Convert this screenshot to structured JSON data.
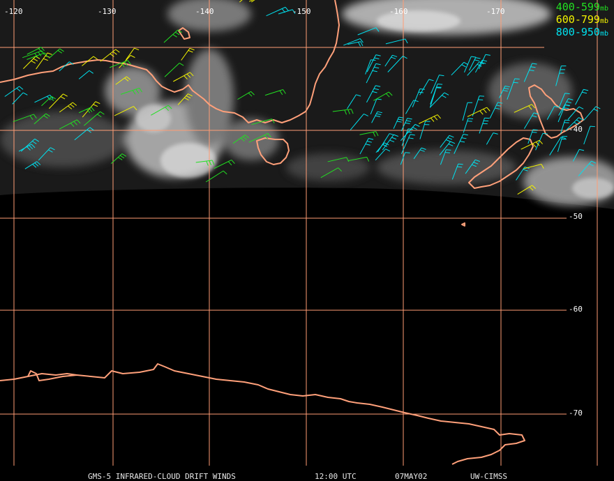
{
  "colors": {
    "grid": "#ff9d75",
    "coast": "#ffa07a",
    "layer_400_599": "#22e022",
    "layer_600_799": "#f3f300",
    "layer_800_950": "#00e2f0"
  },
  "longitude_labels": [
    "-120",
    "-130",
    "-140",
    "-150",
    "-160",
    "-170"
  ],
  "latitude_labels": [
    "-40",
    "-50",
    "-60",
    "-70"
  ],
  "legend": [
    {
      "range": "400-599",
      "unit": "mb",
      "layer": "layer_400_599"
    },
    {
      "range": "600-799",
      "unit": "mb",
      "layer": "layer_600_799"
    },
    {
      "range": "800-950",
      "unit": "mb",
      "layer": "layer_800_950"
    }
  ],
  "footer": {
    "product": "GMS-5 INFRARED-CLOUD DRIFT WINDS",
    "time": "12:00 UTC",
    "date": "07MAY02",
    "source": "UW-CIMSS"
  }
}
